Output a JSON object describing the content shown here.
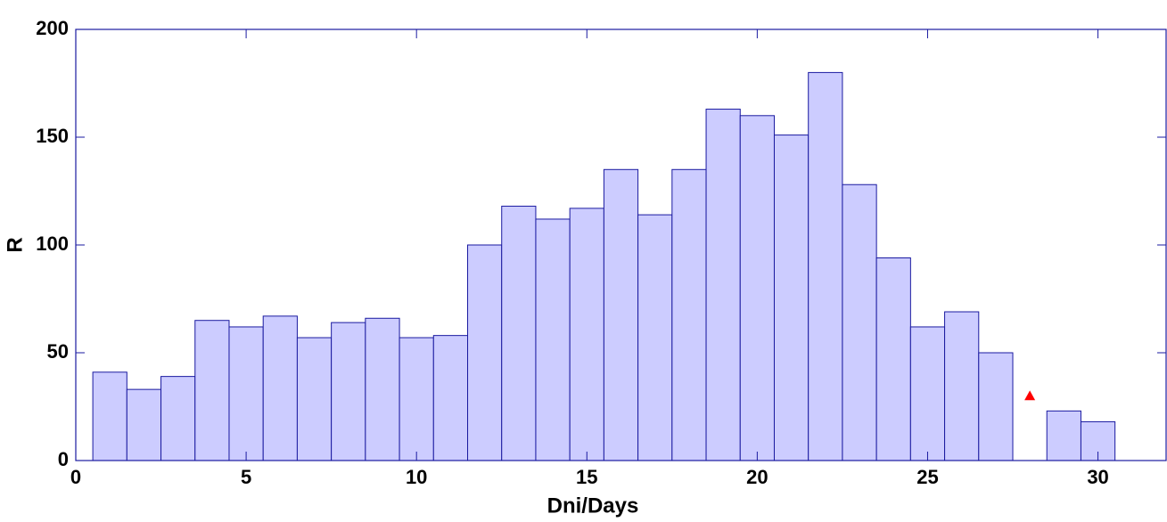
{
  "chart_data": {
    "type": "bar",
    "x_label": "Dni/Days",
    "y_label": "R",
    "x": [
      1,
      2,
      3,
      4,
      5,
      6,
      7,
      8,
      9,
      10,
      11,
      12,
      13,
      14,
      15,
      16,
      17,
      18,
      19,
      20,
      21,
      22,
      23,
      24,
      25,
      26,
      27,
      28,
      29,
      30
    ],
    "values": [
      41,
      33,
      39,
      65,
      62,
      67,
      57,
      64,
      66,
      57,
      58,
      100,
      118,
      112,
      117,
      135,
      114,
      135,
      163,
      160,
      151,
      180,
      128,
      94,
      62,
      69,
      50,
      null,
      23,
      18
    ],
    "bar_width": 1,
    "color": "#ccccff",
    "edge_color": "#1a1aa0",
    "points": {
      "x": [
        28
      ],
      "y": [
        30
      ],
      "color": "#ff0000",
      "marker": "triangle"
    },
    "xlim": [
      0,
      32
    ],
    "xticks": [
      0,
      5,
      10,
      15,
      20,
      25,
      30
    ],
    "ylim": [
      0,
      200
    ],
    "yticks": [
      0,
      50,
      100,
      150,
      200
    ],
    "grid": false
  }
}
